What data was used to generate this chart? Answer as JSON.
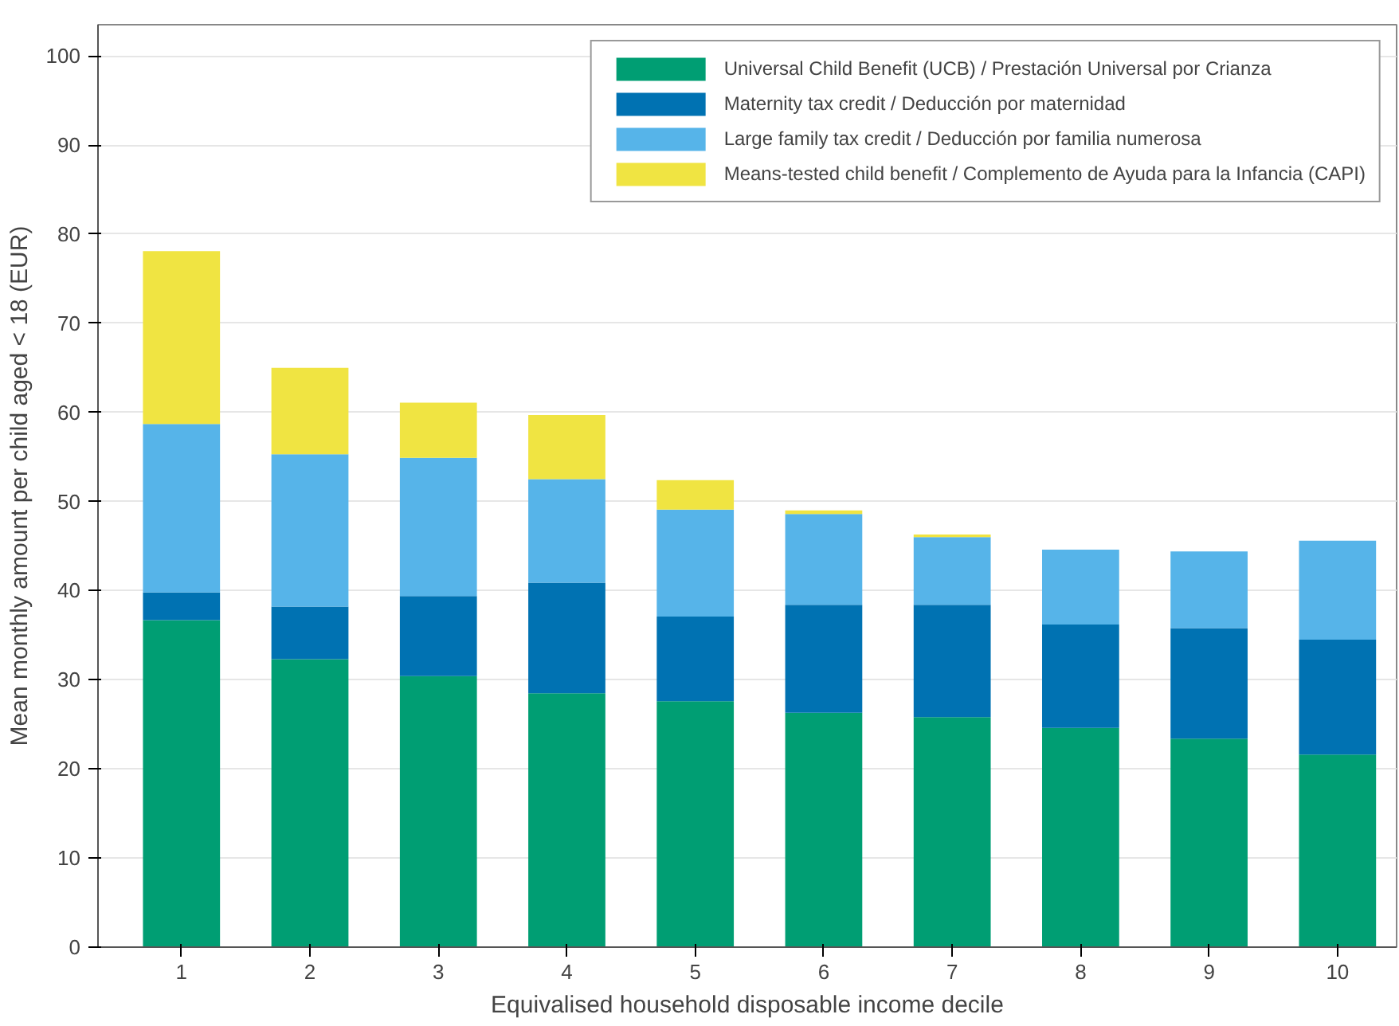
{
  "chart_data": {
    "type": "bar",
    "stacked": true,
    "xlabel": "Equivalised household disposable income decile",
    "ylabel": "Mean monthly amount per child aged < 18 (EUR)",
    "categories": [
      "1",
      "2",
      "3",
      "4",
      "5",
      "6",
      "7",
      "8",
      "9",
      "10"
    ],
    "series": [
      {
        "name": "Universal Child Benefit (UCB) / Prestación Universal por Crianza",
        "color": "#009e73",
        "values": [
          36.7,
          32.3,
          30.4,
          28.5,
          27.6,
          26.3,
          25.8,
          24.6,
          23.4,
          21.6
        ]
      },
      {
        "name": "Maternity tax credit / Deducción por maternidad",
        "color": "#0072b2",
        "values": [
          3.1,
          5.9,
          9.0,
          12.4,
          9.5,
          12.1,
          12.6,
          11.6,
          12.4,
          12.9
        ]
      },
      {
        "name": "Large family tax credit / Deducción por familia numerosa",
        "color": "#56b4e9",
        "values": [
          18.9,
          17.1,
          15.5,
          11.6,
          12.0,
          10.2,
          7.6,
          8.4,
          8.6,
          11.1
        ]
      },
      {
        "name": "Means-tested child benefit / Complemento de Ayuda para la Infancia (CAPI)",
        "color": "#f0e442",
        "values": [
          19.4,
          9.7,
          6.2,
          7.2,
          3.3,
          0.4,
          0.3,
          0,
          0,
          0
        ]
      }
    ],
    "ylim": [
      0,
      103.5
    ],
    "yticks": [
      0,
      10,
      20,
      30,
      40,
      50,
      60,
      70,
      80,
      90,
      100
    ],
    "grid": "y",
    "legend": "top right"
  }
}
